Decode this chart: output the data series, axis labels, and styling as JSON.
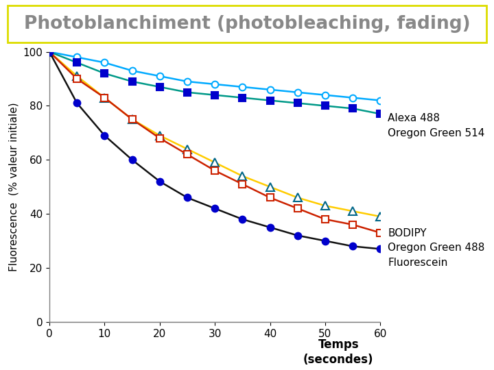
{
  "title": "Photoblanchiment (photobleaching, fading)",
  "ylabel": "Fluorescence  (% valeur initiale)",
  "xlim": [
    0,
    60
  ],
  "ylim": [
    0,
    100
  ],
  "xticks": [
    0,
    10,
    20,
    30,
    40,
    50,
    60
  ],
  "yticks": [
    0,
    20,
    40,
    60,
    80,
    100
  ],
  "background_color": "#ffffff",
  "title_color": "#888888",
  "title_fontsize": 19,
  "title_border_color": "#dddd00",
  "series": [
    {
      "name": "Alexa 488",
      "color": "#00aaff",
      "marker": "o",
      "markersize": 7,
      "markerfacecolor": "white",
      "markeredgecolor": "#00aaff",
      "linewidth": 1.8,
      "x": [
        0,
        5,
        10,
        15,
        20,
        25,
        30,
        35,
        40,
        45,
        50,
        55,
        60
      ],
      "y": [
        100,
        98,
        96,
        93,
        91,
        89,
        88,
        87,
        86,
        85,
        84,
        83,
        82
      ]
    },
    {
      "name": "Oregon Green 514",
      "color": "#009988",
      "marker": "s",
      "markersize": 7,
      "markerfacecolor": "#0000cc",
      "markeredgecolor": "#0000cc",
      "linewidth": 1.8,
      "x": [
        0,
        5,
        10,
        15,
        20,
        25,
        30,
        35,
        40,
        45,
        50,
        55,
        60
      ],
      "y": [
        100,
        96,
        92,
        89,
        87,
        85,
        84,
        83,
        82,
        81,
        80,
        79,
        77
      ]
    },
    {
      "name": "BODIPY",
      "color": "#ffcc00",
      "marker": "^",
      "markersize": 8,
      "markerfacecolor": "white",
      "markeredgecolor": "#006688",
      "linewidth": 1.8,
      "x": [
        0,
        5,
        10,
        15,
        20,
        25,
        30,
        35,
        40,
        45,
        50,
        55,
        60
      ],
      "y": [
        100,
        91,
        83,
        75,
        69,
        64,
        59,
        54,
        50,
        46,
        43,
        41,
        39
      ]
    },
    {
      "name": "Oregon Green 488",
      "color": "#cc2200",
      "marker": "s",
      "markersize": 7,
      "markerfacecolor": "white",
      "markeredgecolor": "#cc2200",
      "linewidth": 1.8,
      "x": [
        0,
        5,
        10,
        15,
        20,
        25,
        30,
        35,
        40,
        45,
        50,
        55,
        60
      ],
      "y": [
        100,
        90,
        83,
        75,
        68,
        62,
        56,
        51,
        46,
        42,
        38,
        36,
        33
      ]
    },
    {
      "name": "Fluorescein",
      "color": "#111111",
      "marker": "o",
      "markersize": 7,
      "markerfacecolor": "#0000cc",
      "markeredgecolor": "#0000cc",
      "linewidth": 1.8,
      "x": [
        0,
        5,
        10,
        15,
        20,
        25,
        30,
        35,
        40,
        45,
        50,
        55,
        60
      ],
      "y": [
        100,
        81,
        69,
        60,
        52,
        46,
        42,
        38,
        35,
        32,
        30,
        28,
        27
      ]
    }
  ],
  "legend_group1_labels": [
    "Alexa 488",
    "Oregon Green 514"
  ],
  "legend_group2_labels": [
    "BODIPY",
    "Oregon Green 488",
    "Fluorescein"
  ],
  "xlabel_bottom": "Temps",
  "xlabel_bottom2": "(secondes)"
}
